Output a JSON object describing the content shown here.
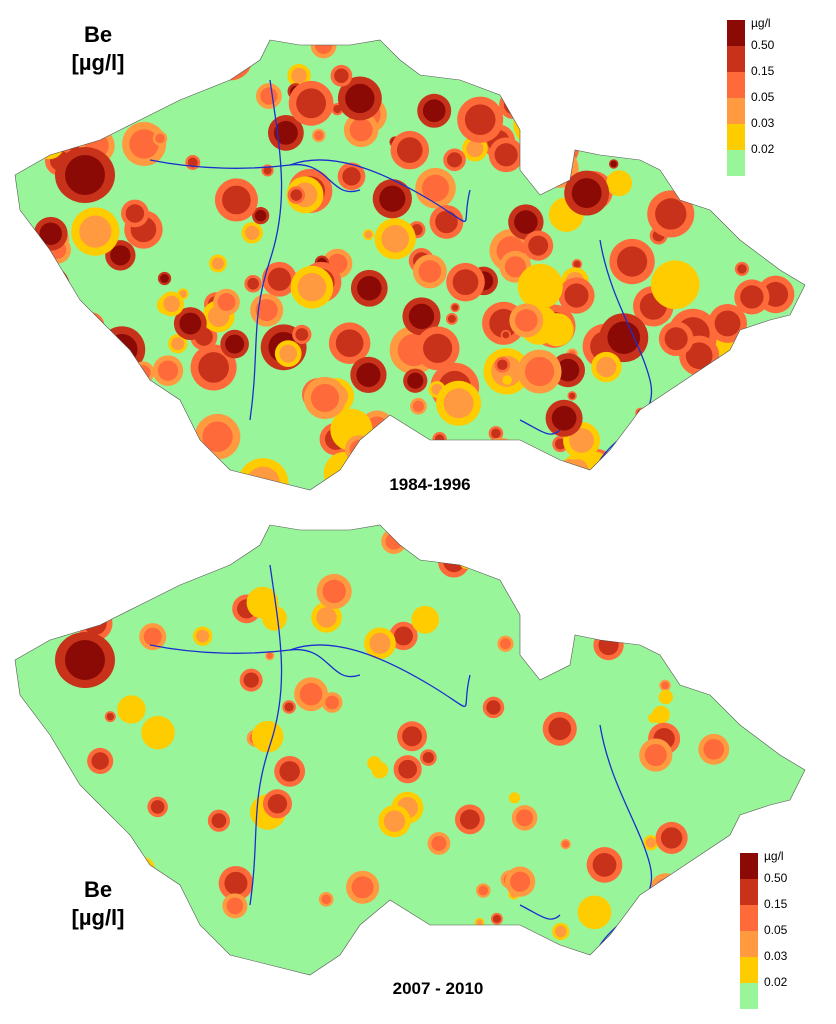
{
  "maps": [
    {
      "element": "Be",
      "unit": "[µg/l]",
      "period": "1984-1996",
      "legend": {
        "unit": "µg/l",
        "labels": [
          "0.50",
          "0.15",
          "0.05",
          "0.03",
          "0.02"
        ],
        "colors": [
          "#8b0a05",
          "#c8321a",
          "#ff6a3a",
          "#ff9a40",
          "#ffcc00",
          "#99f59a"
        ]
      }
    },
    {
      "element": "Be",
      "unit": "[µg/l]",
      "period": "2007 - 2010",
      "legend": {
        "unit": "µg/l",
        "labels": [
          "0.50",
          "0.15",
          "0.05",
          "0.03",
          "0.02"
        ],
        "colors": [
          "#8b0a05",
          "#c8321a",
          "#ff6a3a",
          "#ff9a40",
          "#ffcc00",
          "#99f59a"
        ]
      }
    }
  ]
}
